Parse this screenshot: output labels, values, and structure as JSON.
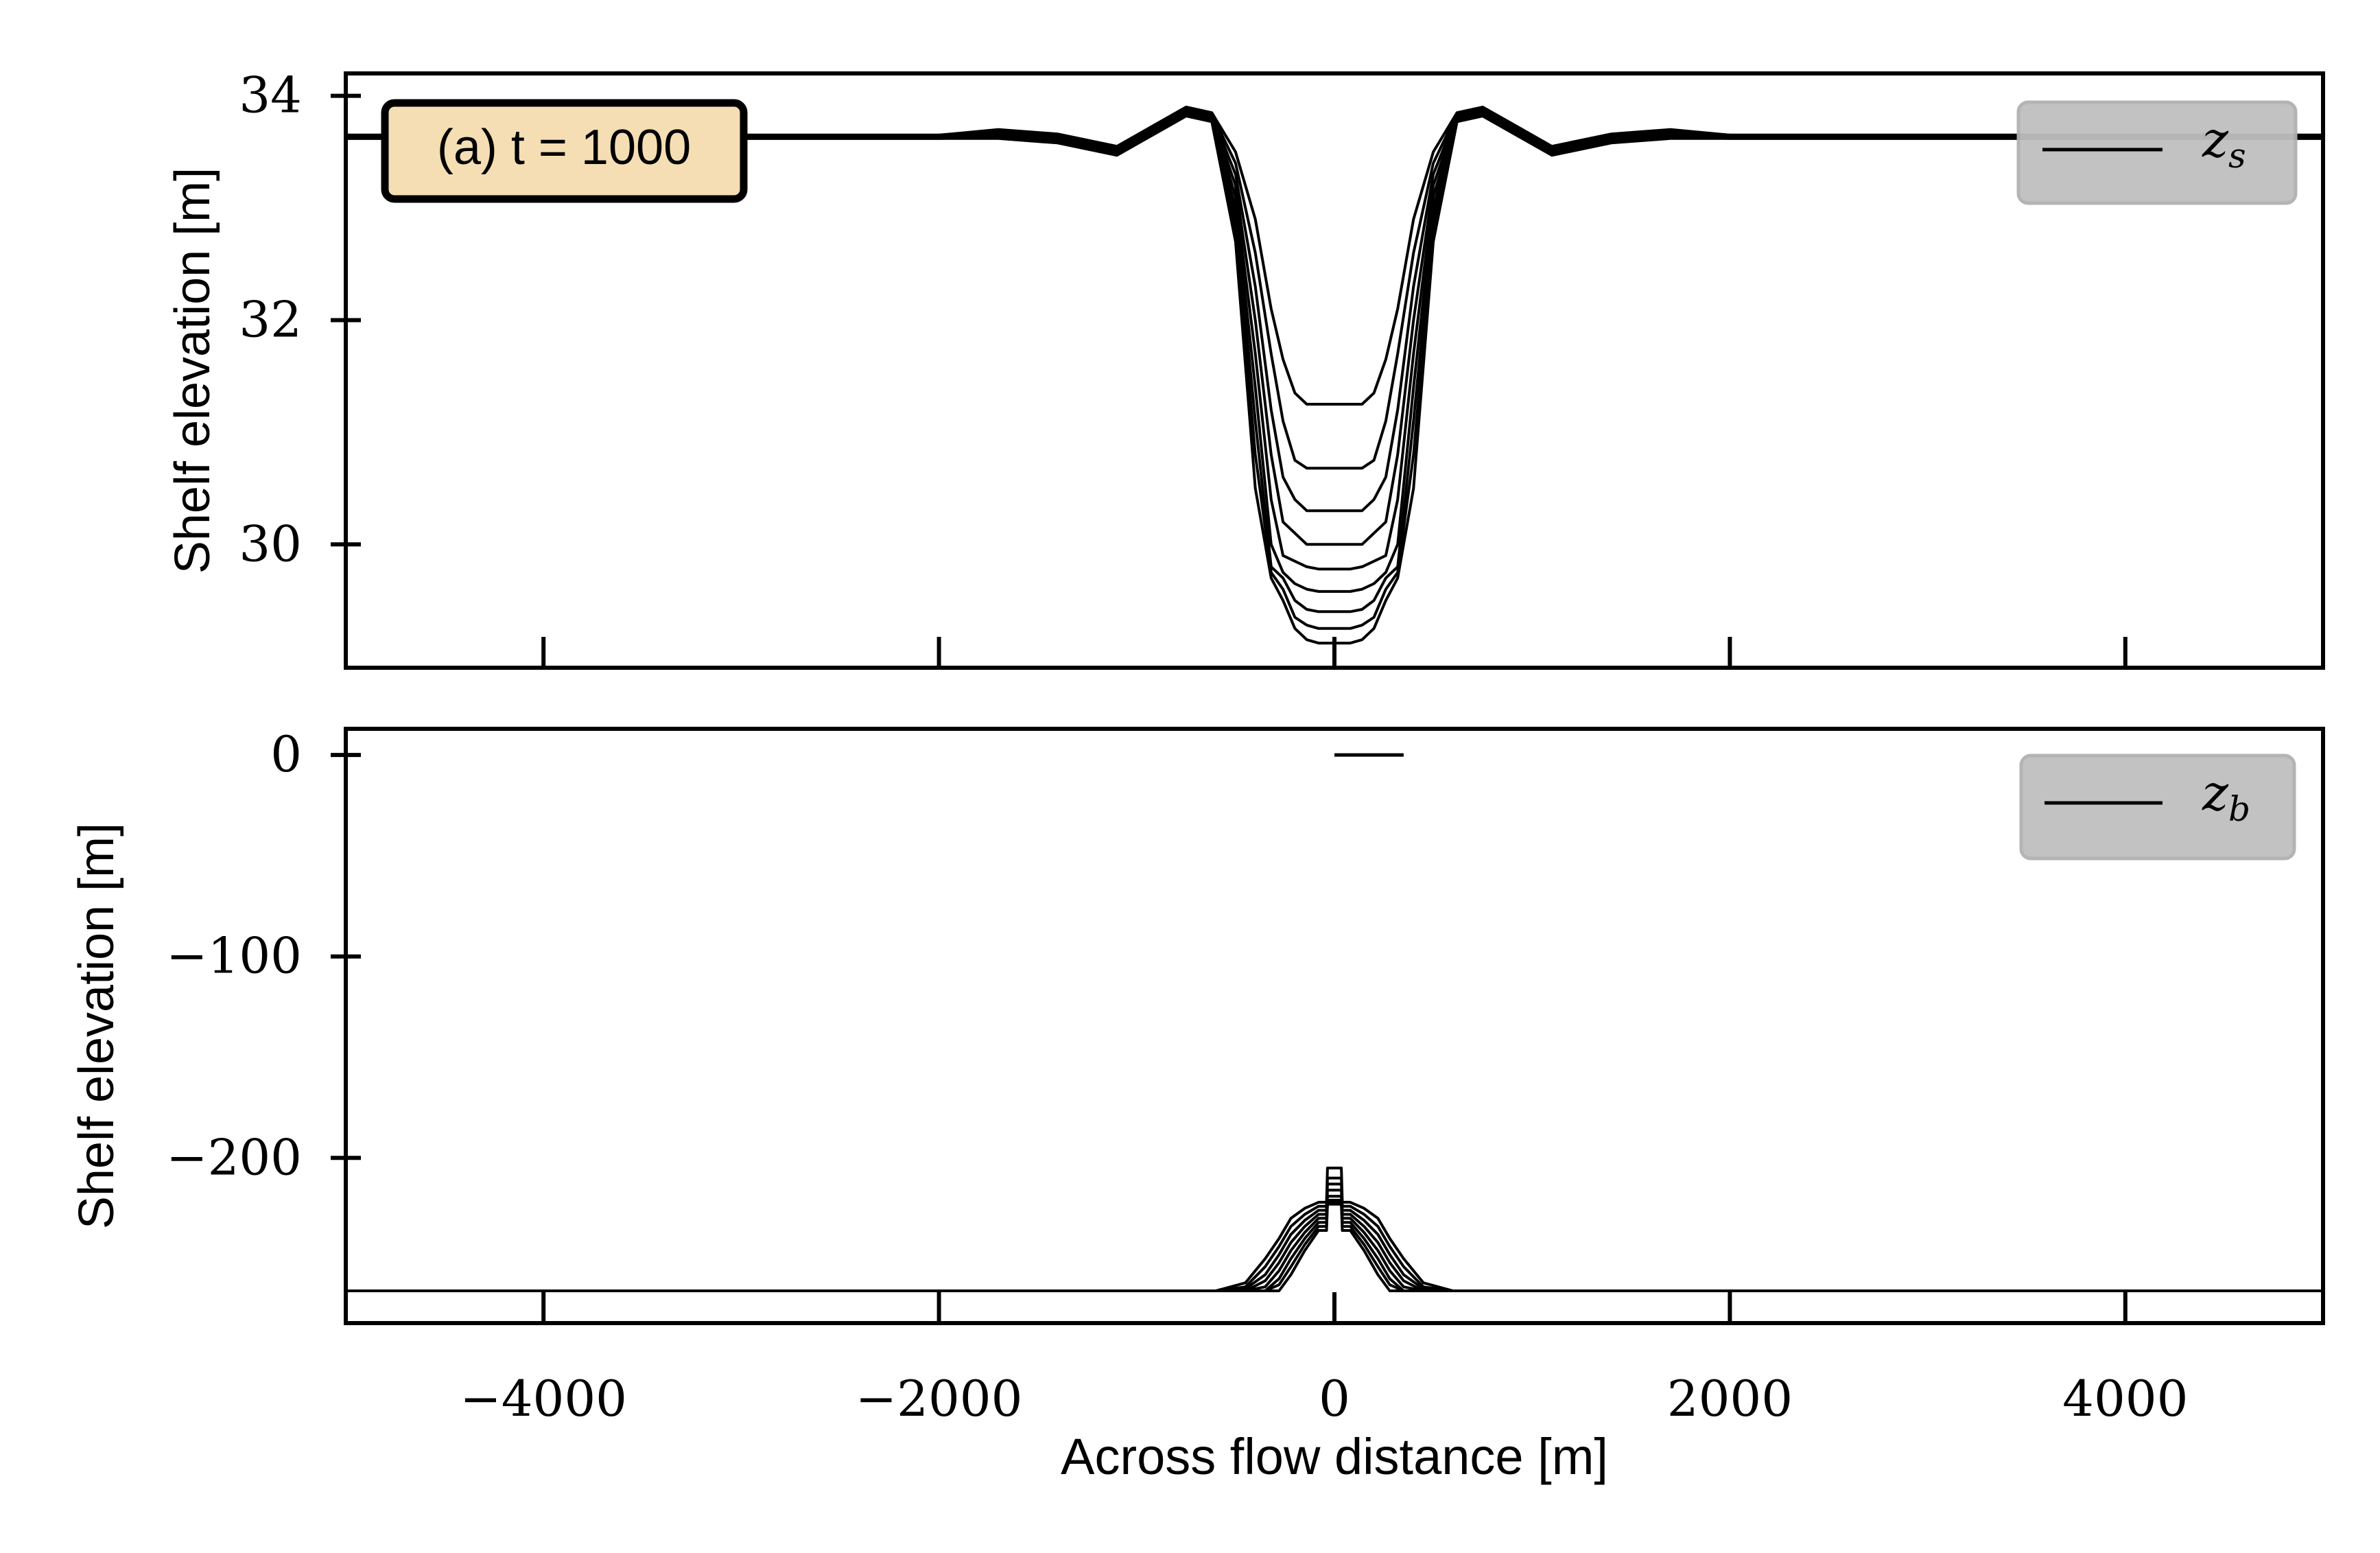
{
  "figure": {
    "xlabel": "Across flow distance [m]"
  },
  "chart_data": [
    {
      "type": "line",
      "panel_label": "(a) t = 1000",
      "ylabel": "Shelf elevation [m]",
      "xlabel": "",
      "xlim": [
        -5000,
        5000
      ],
      "ylim": [
        28.9,
        34.2
      ],
      "xticks": [
        -4000,
        -2000,
        0,
        2000,
        4000
      ],
      "yticks": [
        30,
        32,
        34
      ],
      "yticklabels": [
        "30",
        "32",
        "34"
      ],
      "legend": {
        "label": "z",
        "subscript": "s",
        "placement": "top-right"
      },
      "x": [
        -5000,
        -2000,
        -1700,
        -1400,
        -1100,
        -900,
        -750,
        -620,
        -500,
        -400,
        -320,
        -260,
        -200,
        -140,
        -80,
        0,
        80,
        140,
        200,
        260,
        320,
        400,
        500,
        620,
        750,
        900,
        1100,
        1400,
        1700,
        2000,
        5000
      ],
      "series": [
        {
          "values": [
            33.65,
            33.65,
            33.7,
            33.66,
            33.55,
            33.75,
            33.9,
            33.85,
            33.5,
            32.9,
            32.1,
            31.65,
            31.35,
            31.25,
            31.25,
            31.25,
            31.25,
            31.25,
            31.35,
            31.65,
            32.1,
            32.9,
            33.5,
            33.85,
            33.9,
            33.75,
            33.55,
            33.66,
            33.7,
            33.65,
            33.65
          ]
        },
        {
          "values": [
            33.65,
            33.65,
            33.69,
            33.65,
            33.54,
            33.74,
            33.89,
            33.84,
            33.4,
            32.6,
            31.7,
            31.1,
            30.75,
            30.68,
            30.68,
            30.68,
            30.68,
            30.68,
            30.75,
            31.1,
            31.7,
            32.6,
            33.4,
            33.84,
            33.89,
            33.74,
            33.54,
            33.65,
            33.69,
            33.65,
            33.65
          ]
        },
        {
          "values": [
            33.65,
            33.65,
            33.68,
            33.64,
            33.53,
            33.73,
            33.88,
            33.83,
            33.3,
            32.3,
            31.2,
            30.6,
            30.4,
            30.3,
            30.3,
            30.3,
            30.3,
            30.3,
            30.4,
            30.6,
            31.2,
            32.3,
            33.3,
            33.83,
            33.88,
            33.73,
            33.53,
            33.64,
            33.68,
            33.65,
            33.65
          ]
        },
        {
          "values": [
            33.64,
            33.64,
            33.67,
            33.63,
            33.52,
            33.72,
            33.87,
            33.82,
            33.2,
            32.0,
            30.8,
            30.2,
            30.1,
            30.0,
            30.0,
            30.0,
            30.0,
            30.0,
            30.1,
            30.2,
            30.8,
            32.0,
            33.2,
            33.82,
            33.87,
            33.72,
            33.52,
            33.63,
            33.67,
            33.64,
            33.64
          ]
        },
        {
          "values": [
            33.64,
            33.64,
            33.66,
            33.62,
            33.51,
            33.71,
            33.86,
            33.81,
            33.1,
            31.7,
            30.4,
            29.9,
            29.85,
            29.8,
            29.78,
            29.78,
            29.78,
            29.8,
            29.85,
            29.9,
            30.4,
            31.7,
            33.1,
            33.81,
            33.86,
            33.71,
            33.51,
            33.62,
            33.66,
            33.64,
            33.64
          ]
        },
        {
          "values": [
            33.63,
            33.63,
            33.65,
            33.61,
            33.5,
            33.7,
            33.85,
            33.8,
            33.0,
            31.4,
            30.0,
            29.75,
            29.65,
            29.6,
            29.58,
            29.58,
            29.58,
            29.6,
            29.65,
            29.75,
            30.0,
            31.4,
            33.0,
            33.8,
            33.85,
            33.7,
            33.5,
            33.61,
            33.65,
            33.63,
            33.63
          ]
        },
        {
          "values": [
            33.63,
            33.63,
            33.64,
            33.6,
            33.49,
            33.69,
            33.84,
            33.79,
            32.9,
            31.1,
            29.8,
            29.7,
            29.5,
            29.42,
            29.4,
            29.4,
            29.4,
            29.42,
            29.5,
            29.7,
            29.8,
            31.1,
            32.9,
            33.79,
            33.84,
            33.69,
            33.49,
            33.6,
            33.64,
            33.63,
            33.63
          ]
        },
        {
          "values": [
            33.62,
            33.62,
            33.63,
            33.59,
            33.48,
            33.68,
            33.83,
            33.78,
            32.8,
            30.8,
            29.75,
            29.6,
            29.35,
            29.28,
            29.25,
            29.25,
            29.25,
            29.28,
            29.35,
            29.6,
            29.75,
            30.8,
            32.8,
            33.78,
            33.83,
            33.68,
            33.48,
            33.59,
            33.63,
            33.62,
            33.62
          ]
        },
        {
          "values": [
            33.62,
            33.62,
            33.62,
            33.58,
            33.47,
            33.67,
            33.82,
            33.77,
            32.7,
            30.5,
            29.7,
            29.5,
            29.25,
            29.15,
            29.12,
            29.12,
            29.12,
            29.15,
            29.25,
            29.5,
            29.7,
            30.5,
            32.7,
            33.77,
            33.82,
            33.67,
            33.47,
            33.58,
            33.62,
            33.62,
            33.62
          ]
        }
      ]
    },
    {
      "type": "line",
      "ylabel": "Shelf elevation [m]",
      "xlabel": "Across flow distance [m]",
      "xlim": [
        -5000,
        5000
      ],
      "ylim": [
        -282,
        13
      ],
      "xticks": [
        -4000,
        -2000,
        0,
        2000,
        4000
      ],
      "xticklabels": [
        "−4000",
        "−2000",
        "0",
        "2000",
        "4000"
      ],
      "yticks": [
        0,
        -100,
        -200
      ],
      "yticklabels": [
        "0",
        "−100",
        "−200"
      ],
      "legend": {
        "label": "z",
        "subscript": "b",
        "placement": "top-right"
      },
      "x": [
        -5000,
        -1000,
        -600,
        -450,
        -350,
        -280,
        -220,
        -150,
        -80,
        -40,
        -35,
        0,
        35,
        40,
        80,
        150,
        220,
        280,
        350,
        450,
        600,
        1000,
        5000
      ],
      "series": [
        {
          "values": [
            -266,
            -266,
            -266,
            -262,
            -250,
            -240,
            -230,
            -225,
            -222,
            -222,
            -205,
            -205,
            -205,
            -222,
            -222,
            -225,
            -230,
            -240,
            -250,
            -262,
            -266,
            -266,
            -266
          ]
        },
        {
          "values": [
            -266,
            -266,
            -266,
            -264,
            -254,
            -244,
            -234,
            -228,
            -224,
            -224,
            -210,
            -210,
            -210,
            -224,
            -224,
            -228,
            -234,
            -244,
            -254,
            -264,
            -266,
            -266,
            -266
          ]
        },
        {
          "values": [
            -266,
            -266,
            -266,
            -265,
            -258,
            -248,
            -238,
            -231,
            -226,
            -226,
            -213,
            -213,
            -213,
            -226,
            -226,
            -231,
            -238,
            -248,
            -258,
            -265,
            -266,
            -266,
            -266
          ]
        },
        {
          "values": [
            -266,
            -266,
            -266,
            -266,
            -261,
            -252,
            -242,
            -234,
            -228,
            -228,
            -216,
            -216,
            -216,
            -228,
            -228,
            -234,
            -242,
            -252,
            -261,
            -266,
            -266,
            -266,
            -266
          ]
        },
        {
          "values": [
            -266,
            -266,
            -266,
            -266,
            -264,
            -256,
            -246,
            -237,
            -230,
            -230,
            -219,
            -219,
            -219,
            -230,
            -230,
            -237,
            -246,
            -256,
            -264,
            -266,
            -266,
            -266,
            -266
          ]
        },
        {
          "values": [
            -266,
            -266,
            -266,
            -266,
            -266,
            -260,
            -250,
            -240,
            -232,
            -232,
            -221,
            -221,
            -221,
            -232,
            -232,
            -240,
            -250,
            -260,
            -266,
            -266,
            -266,
            -266,
            -266
          ]
        },
        {
          "values": [
            -266,
            -266,
            -266,
            -266,
            -266,
            -263,
            -254,
            -243,
            -234,
            -234,
            -222,
            -222,
            -222,
            -234,
            -234,
            -243,
            -254,
            -263,
            -266,
            -266,
            -266,
            -266,
            -266
          ]
        },
        {
          "values": [
            -266,
            -266,
            -266,
            -266,
            -266,
            -266,
            -258,
            -246,
            -236,
            -236,
            -223,
            -223,
            -223,
            -236,
            -236,
            -246,
            -258,
            -266,
            -266,
            -266,
            -266,
            -266,
            -266
          ]
        }
      ],
      "segments": [
        {
          "x": [
            0,
            350
          ],
          "y": [
            0,
            0
          ]
        }
      ]
    }
  ]
}
